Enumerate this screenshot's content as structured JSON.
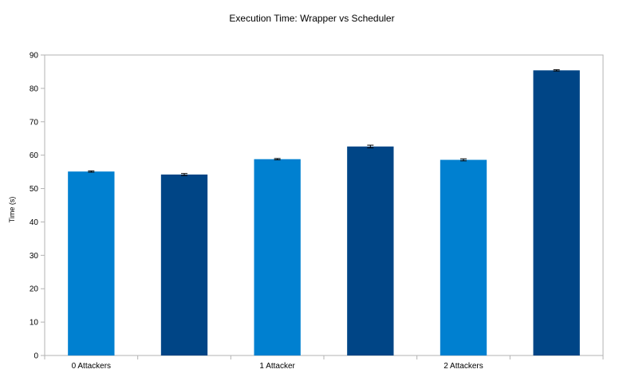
{
  "chart_data": {
    "type": "bar",
    "title": "Execution Time: Wrapper vs Scheduler",
    "ylabel": "Time (s)",
    "xlabel": "",
    "ylim": [
      0,
      90
    ],
    "yticks": [
      0,
      10,
      20,
      30,
      40,
      50,
      60,
      70,
      80,
      90
    ],
    "grid": false,
    "legend": "none",
    "groups": [
      "0 Attackers",
      "1 Attacker",
      "2 Attackers"
    ],
    "bars": [
      {
        "group": "0 Attackers",
        "value": 55.1,
        "error": 0.2,
        "color": "#0080d0"
      },
      {
        "group": "0 Attackers",
        "value": 54.2,
        "error": 0.3,
        "color": "#004586"
      },
      {
        "group": "1 Attacker",
        "value": 58.8,
        "error": 0.2,
        "color": "#0080d0"
      },
      {
        "group": "1 Attacker",
        "value": 62.6,
        "error": 0.4,
        "color": "#004586"
      },
      {
        "group": "2 Attackers",
        "value": 58.6,
        "error": 0.3,
        "color": "#0080d0"
      },
      {
        "group": "2 Attackers",
        "value": 85.4,
        "error": 0.2,
        "color": "#004586"
      }
    ]
  }
}
